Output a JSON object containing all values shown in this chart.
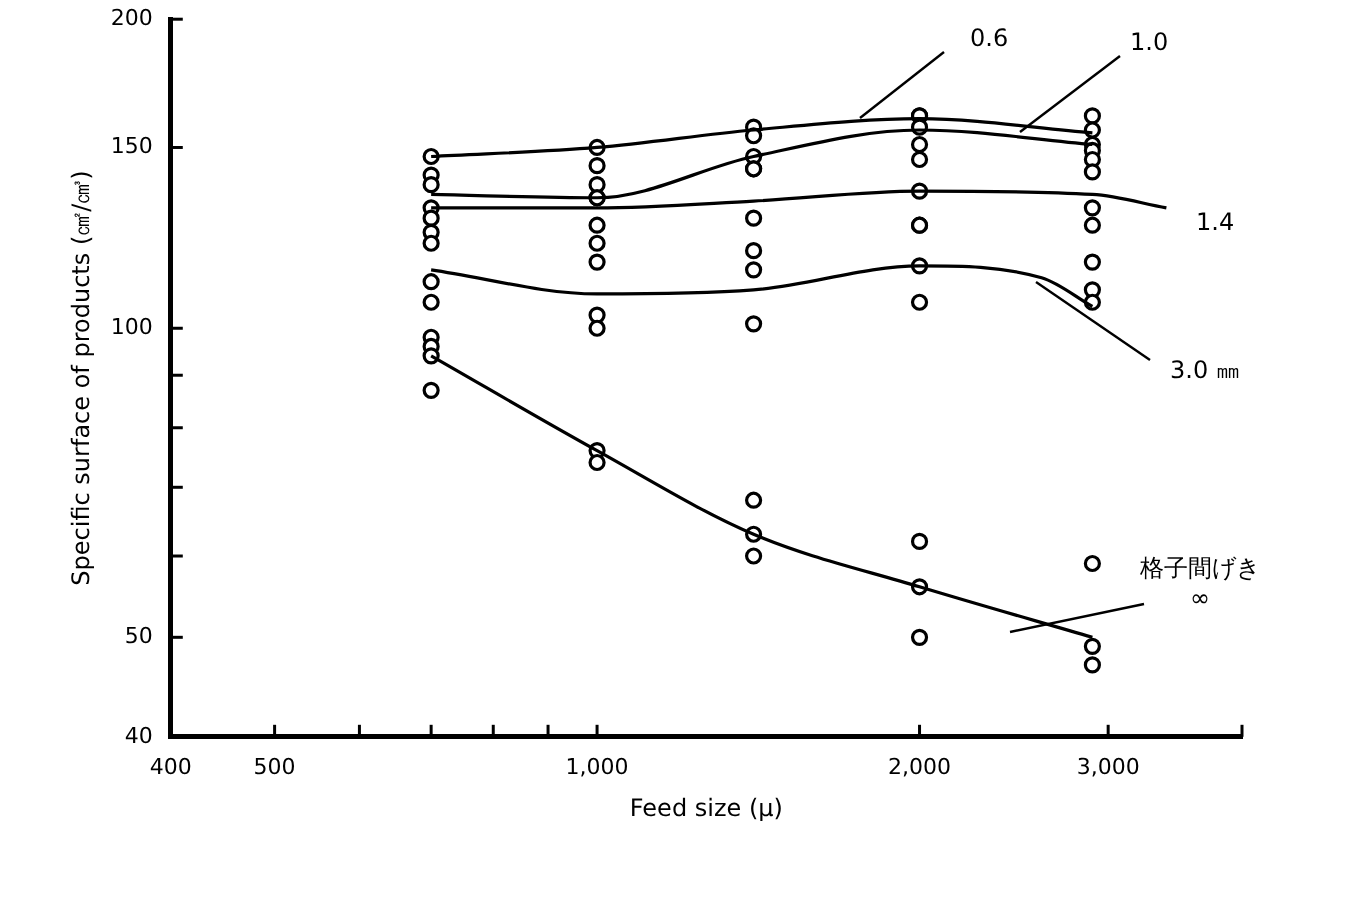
{
  "chart_data": {
    "type": "line",
    "xlabel": "Feed size (μ)",
    "ylabel": "Specific surface of products (㎠/㎤)",
    "log": "xy",
    "grid": false,
    "legend": false,
    "xlim": [
      400,
      4000
    ],
    "xticks": [
      400,
      500,
      {
        "value": 600,
        "label": null
      },
      {
        "value": 700,
        "label": null
      },
      {
        "value": 800,
        "label": null
      },
      {
        "value": 900,
        "label": null
      },
      {
        "value": 1000,
        "label": "1,000"
      },
      {
        "value": 2000,
        "label": "2,000"
      },
      {
        "value": 3000,
        "label": "3,000"
      },
      {
        "value": 4000,
        "label": null
      }
    ],
    "ylim": [
      40,
      200
    ],
    "yticks": [
      40,
      50,
      {
        "value": 60,
        "label": null
      },
      {
        "value": 70,
        "label": null
      },
      {
        "value": 80,
        "label": null
      },
      {
        "value": 90,
        "label": null
      },
      100,
      150,
      200
    ],
    "series": [
      {
        "name": "0.6",
        "marker": "none",
        "color": "#000000",
        "x": [
          700,
          1000,
          1400,
          2000,
          2900
        ],
        "values": [
          147,
          150,
          156,
          160,
          155
        ]
      },
      {
        "name": "1.0",
        "marker": "none",
        "color": "#000000",
        "x": [
          700,
          1000,
          1400,
          2000,
          2900
        ],
        "values": [
          135,
          134,
          147,
          156,
          151
        ]
      },
      {
        "name": "1.4",
        "marker": "none",
        "color": "#000000",
        "x": [
          700,
          1000,
          1400,
          2000,
          2900,
          3400
        ],
        "values": [
          131,
          131,
          133,
          136,
          135,
          131
        ]
      },
      {
        "name": "3.0 ㎜",
        "marker": "none",
        "color": "#000000",
        "x": [
          700,
          1000,
          1400,
          2000,
          2600,
          2900
        ],
        "values": [
          114,
          108,
          109,
          115,
          112,
          105
        ]
      },
      {
        "name": "格子間げき ∞",
        "marker": "none",
        "color": "#000000",
        "x": [
          700,
          1000,
          1400,
          2000,
          2900
        ],
        "values": [
          94,
          76,
          63,
          56,
          50
        ]
      },
      {
        "type": "scatter",
        "marker": "circle",
        "color": "#000000",
        "x": [
          700,
          700,
          700,
          700,
          700,
          700,
          700,
          700,
          700,
          700,
          700,
          700,
          700,
          1000,
          1000,
          1000,
          1000,
          1000,
          1000,
          1000,
          1000,
          1000,
          1000,
          1000,
          1000,
          1400,
          1400,
          1400,
          1400,
          1400,
          1400,
          1400,
          1400,
          1400,
          1400,
          1400,
          1400,
          2000,
          2000,
          2000,
          2000,
          2000,
          2000,
          2000,
          2000,
          2000,
          2000,
          2000,
          2000,
          2000,
          2900,
          2900,
          2900,
          2900,
          2900,
          2900,
          2900,
          2900,
          2900,
          2900,
          2900,
          2900,
          2900,
          2900
        ],
        "values": [
          147,
          141,
          138,
          131,
          128,
          124,
          121,
          111,
          106,
          98,
          96,
          94,
          87,
          150,
          144,
          138,
          134,
          134,
          126,
          121,
          116,
          103,
          100,
          76,
          74,
          157,
          154,
          147,
          143,
          143,
          128,
          119,
          114,
          101,
          68,
          63,
          60,
          161,
          161,
          157,
          151,
          146,
          136,
          126,
          126,
          115,
          106,
          62,
          56,
          50,
          161,
          156,
          151,
          149,
          146,
          142,
          131,
          126,
          116,
          109,
          106,
          59,
          49,
          47
        ]
      }
    ]
  }
}
